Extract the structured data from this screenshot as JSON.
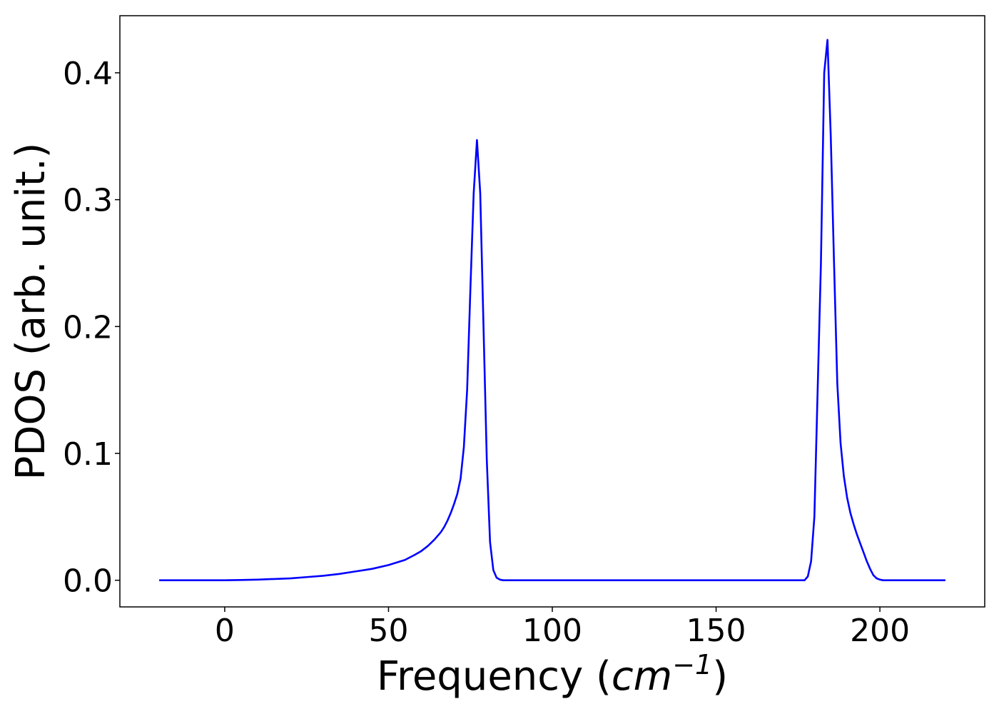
{
  "chart_data": {
    "type": "line",
    "title": "",
    "xlabel": {
      "prefix": "Frequency (",
      "unit_base": "cm",
      "unit_exponent": "−1",
      "suffix": ")"
    },
    "ylabel": "PDOS (arb. unit.)",
    "xlim": [
      -32,
      232
    ],
    "ylim": [
      -0.021,
      0.445
    ],
    "xticks": [
      0,
      50,
      100,
      150,
      200
    ],
    "xtick_labels": [
      "0",
      "50",
      "100",
      "150",
      "200"
    ],
    "yticks": [
      0.0,
      0.1,
      0.2,
      0.3,
      0.4
    ],
    "ytick_labels": [
      "0.0",
      "0.1",
      "0.2",
      "0.3",
      "0.4"
    ],
    "grid": false,
    "line_color": "#0000ff",
    "series": [
      {
        "x": [
          -20,
          0,
          5,
          10,
          15,
          20,
          25,
          30,
          35,
          40,
          45,
          50,
          55,
          58,
          60,
          62,
          64,
          66,
          67,
          68,
          69,
          70,
          71,
          72,
          73,
          74,
          75,
          76,
          77,
          78,
          79,
          80,
          81,
          82,
          83,
          84,
          85,
          86,
          100,
          150,
          176,
          177,
          178,
          179,
          180,
          181,
          182,
          183,
          184,
          185,
          186,
          187,
          188,
          189,
          190,
          191,
          192,
          193,
          194,
          195,
          196,
          197,
          198,
          199,
          200,
          201,
          202,
          203,
          204,
          205,
          210,
          220
        ],
        "y": [
          0.0,
          0.0,
          0.0002,
          0.0005,
          0.001,
          0.0015,
          0.0025,
          0.0035,
          0.005,
          0.007,
          0.009,
          0.012,
          0.016,
          0.02,
          0.023,
          0.027,
          0.032,
          0.038,
          0.042,
          0.047,
          0.053,
          0.06,
          0.068,
          0.08,
          0.105,
          0.15,
          0.23,
          0.305,
          0.347,
          0.305,
          0.2,
          0.095,
          0.03,
          0.008,
          0.002,
          0.0005,
          0.0,
          0.0,
          0.0,
          0.0,
          0.0,
          0.0,
          0.003,
          0.015,
          0.05,
          0.15,
          0.25,
          0.4,
          0.426,
          0.35,
          0.25,
          0.155,
          0.108,
          0.082,
          0.065,
          0.053,
          0.044,
          0.036,
          0.029,
          0.022,
          0.015,
          0.009,
          0.004,
          0.0015,
          0.0005,
          0.0,
          0.0,
          0.0,
          0.0,
          0.0,
          0.0,
          0.0
        ]
      }
    ]
  }
}
